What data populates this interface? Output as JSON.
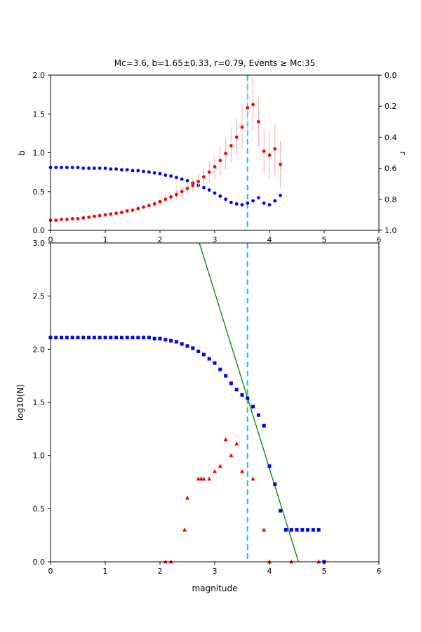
{
  "title": "Mc=3.6, b=1.65±0.33, r=0.79, Events ≥ Mc:35",
  "colors": {
    "mc_line": "#00ced1",
    "b_series": "#0000ff",
    "r_series": "#ff0000",
    "error_bar": "#ffaaaa",
    "fit_line": "#008000",
    "axes": "#000000",
    "background": "#ffffff"
  },
  "chart_data": [
    {
      "type": "scatter",
      "name": "b-value-and-r-vs-cutoff-magnitude",
      "xlim": [
        0,
        6
      ],
      "ylim": [
        0,
        2
      ],
      "ylim_right": [
        1.0,
        0.0
      ],
      "xticks": [
        "0",
        "1",
        "2",
        "3",
        "4",
        "5",
        "6"
      ],
      "yticks": [
        "0.0",
        "0.5",
        "1.0",
        "1.5",
        "2.0"
      ],
      "yticks_right": [
        "0.0",
        "0.2",
        "0.4",
        "0.6",
        "0.8",
        "1.0"
      ],
      "ylabel": "b",
      "ylabel_right": "r",
      "mc_line_x": 3.6,
      "series": [
        {
          "name": "b-value",
          "marker": "circle",
          "color": "#0000ff",
          "x": [
            0,
            0.1,
            0.2,
            0.3,
            0.4,
            0.5,
            0.6,
            0.7,
            0.8,
            0.9,
            1,
            1.1,
            1.2,
            1.3,
            1.4,
            1.5,
            1.6,
            1.7,
            1.8,
            1.9,
            2,
            2.1,
            2.2,
            2.3,
            2.4,
            2.5,
            2.6,
            2.7,
            2.8,
            2.9,
            3,
            3.1,
            3.2,
            3.3,
            3.4,
            3.5,
            3.6,
            3.7,
            3.8,
            3.9,
            4,
            4.1,
            4.2
          ],
          "y": [
            0.81,
            0.81,
            0.81,
            0.81,
            0.81,
            0.81,
            0.8,
            0.8,
            0.8,
            0.8,
            0.8,
            0.79,
            0.79,
            0.78,
            0.78,
            0.77,
            0.77,
            0.76,
            0.75,
            0.74,
            0.73,
            0.71,
            0.7,
            0.68,
            0.66,
            0.64,
            0.61,
            0.58,
            0.55,
            0.52,
            0.48,
            0.44,
            0.4,
            0.36,
            0.34,
            0.33,
            0.35,
            0.38,
            0.42,
            0.35,
            0.33,
            0.38,
            0.45
          ]
        },
        {
          "name": "r-value",
          "marker": "circle",
          "color": "#ff0000",
          "ecolor": "#ffaaaa",
          "x": [
            0,
            0.1,
            0.2,
            0.3,
            0.4,
            0.5,
            0.6,
            0.7,
            0.8,
            0.9,
            1,
            1.1,
            1.2,
            1.3,
            1.4,
            1.5,
            1.6,
            1.7,
            1.8,
            1.9,
            2,
            2.1,
            2.2,
            2.3,
            2.4,
            2.5,
            2.6,
            2.7,
            2.8,
            2.9,
            3,
            3.1,
            3.2,
            3.3,
            3.4,
            3.5,
            3.6,
            3.7,
            3.8,
            3.9,
            4,
            4.1,
            4.2
          ],
          "y": [
            0.13,
            0.13,
            0.14,
            0.14,
            0.15,
            0.15,
            0.16,
            0.17,
            0.18,
            0.19,
            0.2,
            0.21,
            0.22,
            0.23,
            0.25,
            0.26,
            0.28,
            0.3,
            0.32,
            0.34,
            0.37,
            0.4,
            0.43,
            0.46,
            0.5,
            0.54,
            0.58,
            0.63,
            0.69,
            0.75,
            0.82,
            0.9,
            0.99,
            1.09,
            1.2,
            1.33,
            1.58,
            1.62,
            1.4,
            1.02,
            0.97,
            1.05,
            0.85
          ],
          "yerr": [
            0.02,
            0.02,
            0.02,
            0.02,
            0.02,
            0.02,
            0.02,
            0.02,
            0.02,
            0.02,
            0.02,
            0.02,
            0.02,
            0.02,
            0.02,
            0.02,
            0.02,
            0.02,
            0.02,
            0.02,
            0.03,
            0.04,
            0.05,
            0.06,
            0.07,
            0.08,
            0.09,
            0.1,
            0.12,
            0.14,
            0.16,
            0.18,
            0.2,
            0.22,
            0.25,
            0.28,
            0.33,
            0.35,
            0.32,
            0.28,
            0.3,
            0.33,
            0.3
          ]
        }
      ]
    },
    {
      "type": "scatter",
      "name": "frequency-magnitude-distribution",
      "xlim": [
        0,
        6
      ],
      "ylim": [
        0,
        3
      ],
      "xticks": [
        "0",
        "1",
        "2",
        "3",
        "4",
        "5",
        "6"
      ],
      "yticks": [
        "0.0",
        "0.5",
        "1.0",
        "1.5",
        "2.0",
        "2.5",
        "3.0"
      ],
      "xlabel": "magnitude",
      "ylabel": "log10(N)",
      "mc_line_x": 3.6,
      "fit_line": {
        "color": "#008000",
        "x": [
          2.72,
          4.53
        ],
        "y": [
          3.0,
          0.0
        ]
      },
      "series": [
        {
          "name": "cumulative-counts",
          "marker": "square",
          "color": "#0000ff",
          "x": [
            0,
            0.1,
            0.2,
            0.3,
            0.4,
            0.5,
            0.6,
            0.7,
            0.8,
            0.9,
            1,
            1.1,
            1.2,
            1.3,
            1.4,
            1.5,
            1.6,
            1.7,
            1.8,
            1.9,
            2,
            2.1,
            2.2,
            2.3,
            2.4,
            2.5,
            2.6,
            2.7,
            2.8,
            2.9,
            3,
            3.1,
            3.2,
            3.3,
            3.4,
            3.5,
            3.6,
            3.7,
            3.8,
            3.9,
            4,
            4.1,
            4.2,
            4.3,
            4.4,
            4.5,
            4.6,
            4.7,
            4.8,
            4.9,
            5
          ],
          "y": [
            2.11,
            2.11,
            2.11,
            2.11,
            2.11,
            2.11,
            2.11,
            2.11,
            2.11,
            2.11,
            2.11,
            2.11,
            2.11,
            2.11,
            2.11,
            2.11,
            2.11,
            2.11,
            2.11,
            2.1,
            2.1,
            2.09,
            2.08,
            2.07,
            2.05,
            2.03,
            2.01,
            1.98,
            1.95,
            1.91,
            1.87,
            1.81,
            1.75,
            1.68,
            1.62,
            1.57,
            1.54,
            1.46,
            1.38,
            1.28,
            0.9,
            0.73,
            0.48,
            0.3,
            0.3,
            0.3,
            0.3,
            0.3,
            0.3,
            0.3,
            0.0
          ]
        },
        {
          "name": "incremental-counts",
          "marker": "triangle",
          "color": "#ff0000",
          "x": [
            2.1,
            2.2,
            2.45,
            2.5,
            2.7,
            2.75,
            2.8,
            2.9,
            3.0,
            3.1,
            3.2,
            3.3,
            3.4,
            3.5,
            3.7,
            3.9,
            4.0,
            4.4,
            4.9
          ],
          "y": [
            0.0,
            0.0,
            0.3,
            0.6,
            0.78,
            0.78,
            0.78,
            0.78,
            0.85,
            0.9,
            1.15,
            1.0,
            1.11,
            0.85,
            0.78,
            0.3,
            0.0,
            0.0,
            0.0
          ]
        }
      ]
    }
  ]
}
